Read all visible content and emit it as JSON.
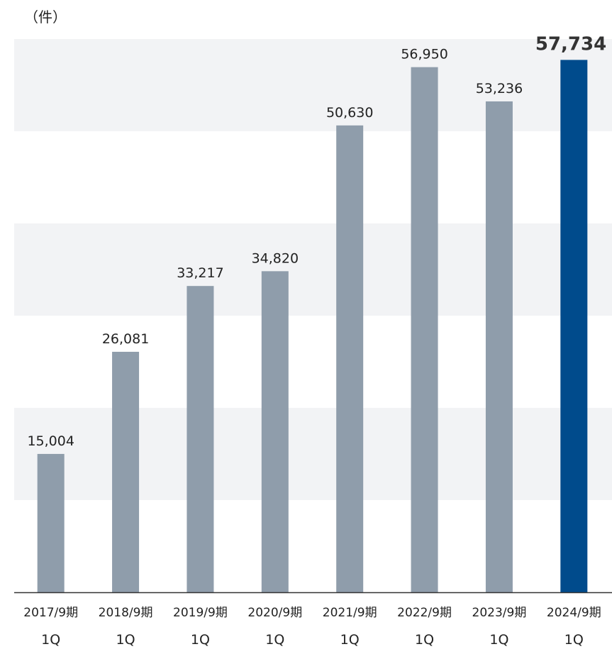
{
  "chart_data": {
    "type": "bar",
    "unit_label": "（件）",
    "categories": [
      [
        "2017/9期",
        "1Q"
      ],
      [
        "2018/9期",
        "1Q"
      ],
      [
        "2019/9期",
        "1Q"
      ],
      [
        "2020/9期",
        "1Q"
      ],
      [
        "2021/9期",
        "1Q"
      ],
      [
        "2022/9期",
        "1Q"
      ],
      [
        "2023/9期",
        "1Q"
      ],
      [
        "2024/9期",
        "1Q"
      ]
    ],
    "values": [
      15004,
      26081,
      33217,
      34820,
      50630,
      56950,
      53236,
      57734
    ],
    "value_labels": [
      "15,004",
      "26,081",
      "33,217",
      "34,820",
      "50,630",
      "56,950",
      "53,236",
      "57,734"
    ],
    "highlight_index": 7,
    "ylim": [
      0,
      60000
    ],
    "grid": "alternating horizontal bands",
    "colors": {
      "bar": "#8f9dab",
      "highlight_bar": "#004b8c",
      "band": "#f2f3f5",
      "axis": "#333333"
    }
  }
}
